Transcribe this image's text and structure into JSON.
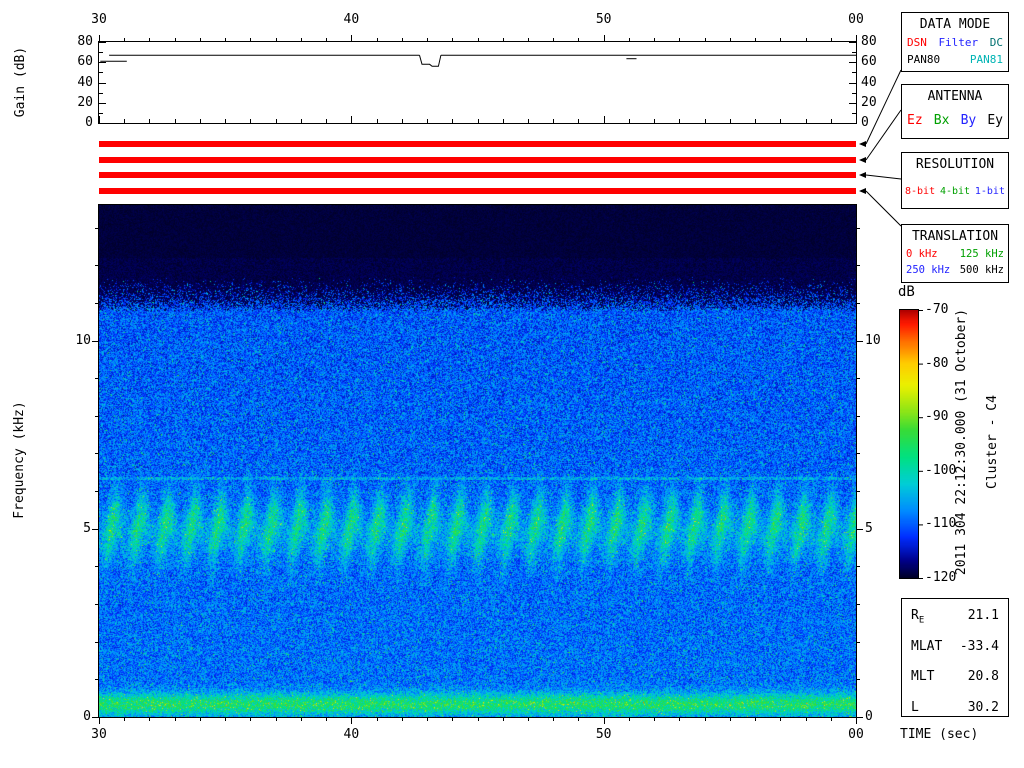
{
  "top_axis": {
    "tick_labels": [
      "30",
      "40",
      "50",
      "00"
    ]
  },
  "gain_panel": {
    "ylabel": "Gain (dB)",
    "ytick_labels": [
      "0",
      "20",
      "40",
      "60",
      "80"
    ]
  },
  "spectrogram_panel": {
    "ylabel": "Frequency (kHz)",
    "xlabel": "TIME (sec)",
    "ytick_labels": [
      "0",
      "5",
      "10"
    ],
    "xtick_labels": [
      "30",
      "40",
      "50",
      "00"
    ]
  },
  "status_bars": [
    {
      "name": "data-mode",
      "active_value": "DSN",
      "color": "#ff0000"
    },
    {
      "name": "antenna",
      "active_value": "Ez",
      "color": "#ff0000"
    },
    {
      "name": "resolution",
      "active_value": "8-bit",
      "color": "#ff0000"
    },
    {
      "name": "translation",
      "active_value": "0 kHz",
      "color": "#ff0000"
    }
  ],
  "panels": {
    "data_mode": {
      "title": "DATA MODE",
      "options_row1": [
        {
          "label": "DSN",
          "color": "#ff0000"
        },
        {
          "label": "Filter",
          "color": "#2222ff"
        },
        {
          "label": "DC",
          "color": "#007070"
        }
      ],
      "options_row2": [
        {
          "label": "PAN80",
          "color": "#000000"
        },
        {
          "label": "PAN81",
          "color": "#00b4b4"
        }
      ]
    },
    "antenna": {
      "title": "ANTENNA",
      "options": [
        {
          "label": "Ez",
          "color": "#ff0000"
        },
        {
          "label": "Bx",
          "color": "#00a000"
        },
        {
          "label": "By",
          "color": "#2222ff"
        },
        {
          "label": "Ey",
          "color": "#000000"
        }
      ]
    },
    "resolution": {
      "title": "RESOLUTION",
      "options": [
        {
          "label": "8-bit",
          "color": "#ff0000"
        },
        {
          "label": "4-bit",
          "color": "#00a000"
        },
        {
          "label": "1-bit",
          "color": "#2222ff"
        }
      ]
    },
    "translation": {
      "title": "TRANSLATION",
      "options_row1": [
        {
          "label": "0 kHz",
          "color": "#ff0000"
        },
        {
          "label": "125 kHz",
          "color": "#00a000"
        }
      ],
      "options_row2": [
        {
          "label": "250 kHz",
          "color": "#2222ff"
        },
        {
          "label": "500 kHz",
          "color": "#000000"
        }
      ]
    }
  },
  "colorbar": {
    "label": "dB",
    "tick_labels": [
      "-70",
      "-80",
      "-90",
      "-100",
      "-110",
      "-120"
    ],
    "max": -70,
    "min": -120,
    "gradient_stops": [
      [
        0.0,
        0,
        0,
        40
      ],
      [
        0.06,
        0,
        0,
        135
      ],
      [
        0.15,
        0,
        45,
        255
      ],
      [
        0.25,
        0,
        140,
        255
      ],
      [
        0.35,
        0,
        205,
        215
      ],
      [
        0.45,
        0,
        225,
        130
      ],
      [
        0.55,
        55,
        220,
        55
      ],
      [
        0.63,
        150,
        230,
        20
      ],
      [
        0.72,
        235,
        240,
        0
      ],
      [
        0.8,
        255,
        205,
        0
      ],
      [
        0.88,
        255,
        115,
        0
      ],
      [
        0.95,
        255,
        25,
        0
      ],
      [
        1.0,
        175,
        0,
        0
      ]
    ]
  },
  "side_text": {
    "timestamp": "2011 304 22:12:30.000 (31 October)",
    "spacecraft": "Cluster - C4"
  },
  "ephemeris": {
    "rows": [
      {
        "label": "R",
        "sub": "E",
        "value": "21.1"
      },
      {
        "label": "MLAT",
        "sub": "",
        "value": "-33.4"
      },
      {
        "label": "MLT",
        "sub": "",
        "value": "20.8"
      },
      {
        "label": "L",
        "sub": "",
        "value": "30.2"
      }
    ]
  },
  "chart_data": [
    {
      "type": "line",
      "title": "Receiver gain",
      "ylabel": "Gain (dB)",
      "xlabel": "TIME (sec)",
      "xlim": [
        30,
        60
      ],
      "ylim": [
        0,
        80
      ],
      "x_tick_labels": [
        "30",
        "40",
        "50",
        "00"
      ],
      "y_tick_labels": [
        "0",
        "20",
        "40",
        "60",
        "80"
      ],
      "segments": [
        [
          [
            30.05,
            61
          ],
          [
            31.1,
            61
          ]
        ],
        [
          [
            30.4,
            67
          ],
          [
            42.7,
            67
          ]
        ],
        [
          [
            42.7,
            67
          ],
          [
            42.8,
            58
          ],
          [
            43.1,
            58
          ],
          [
            43.2,
            56
          ],
          [
            43.45,
            56
          ],
          [
            43.55,
            67
          ]
        ],
        [
          [
            43.55,
            67
          ],
          [
            60,
            67
          ]
        ],
        [
          [
            50.9,
            63.5
          ],
          [
            51.3,
            63.5
          ]
        ]
      ]
    },
    {
      "type": "heatmap",
      "title": "Cluster C4 WBD spectrogram",
      "ylabel": "Frequency (kHz)",
      "xlabel": "TIME (sec)",
      "zlabel": "dB",
      "xlim": [
        30,
        60
      ],
      "ylim": [
        0,
        13.6
      ],
      "zlim": [
        -120,
        -70
      ],
      "x_tick_labels": [
        "30",
        "40",
        "50",
        "00"
      ],
      "y_tick_labels": [
        "0",
        "5",
        "10"
      ],
      "features": {
        "noise_floor_db": -110,
        "noise_spread_db": 10,
        "upper_cutoff_khz": 11.2,
        "floor_db": -120,
        "hiss_band": {
          "center_khz": 5.0,
          "sigma_khz": 0.5,
          "ripple_period_sec": 1.05,
          "center_wobble_khz": 0.35,
          "peak_boost_db": 17
        },
        "narrowband_line_khz": 6.35,
        "low_band": {
          "center_khz": 0.35,
          "sigma_khz": 0.2,
          "boost_db": 17
        }
      }
    }
  ]
}
